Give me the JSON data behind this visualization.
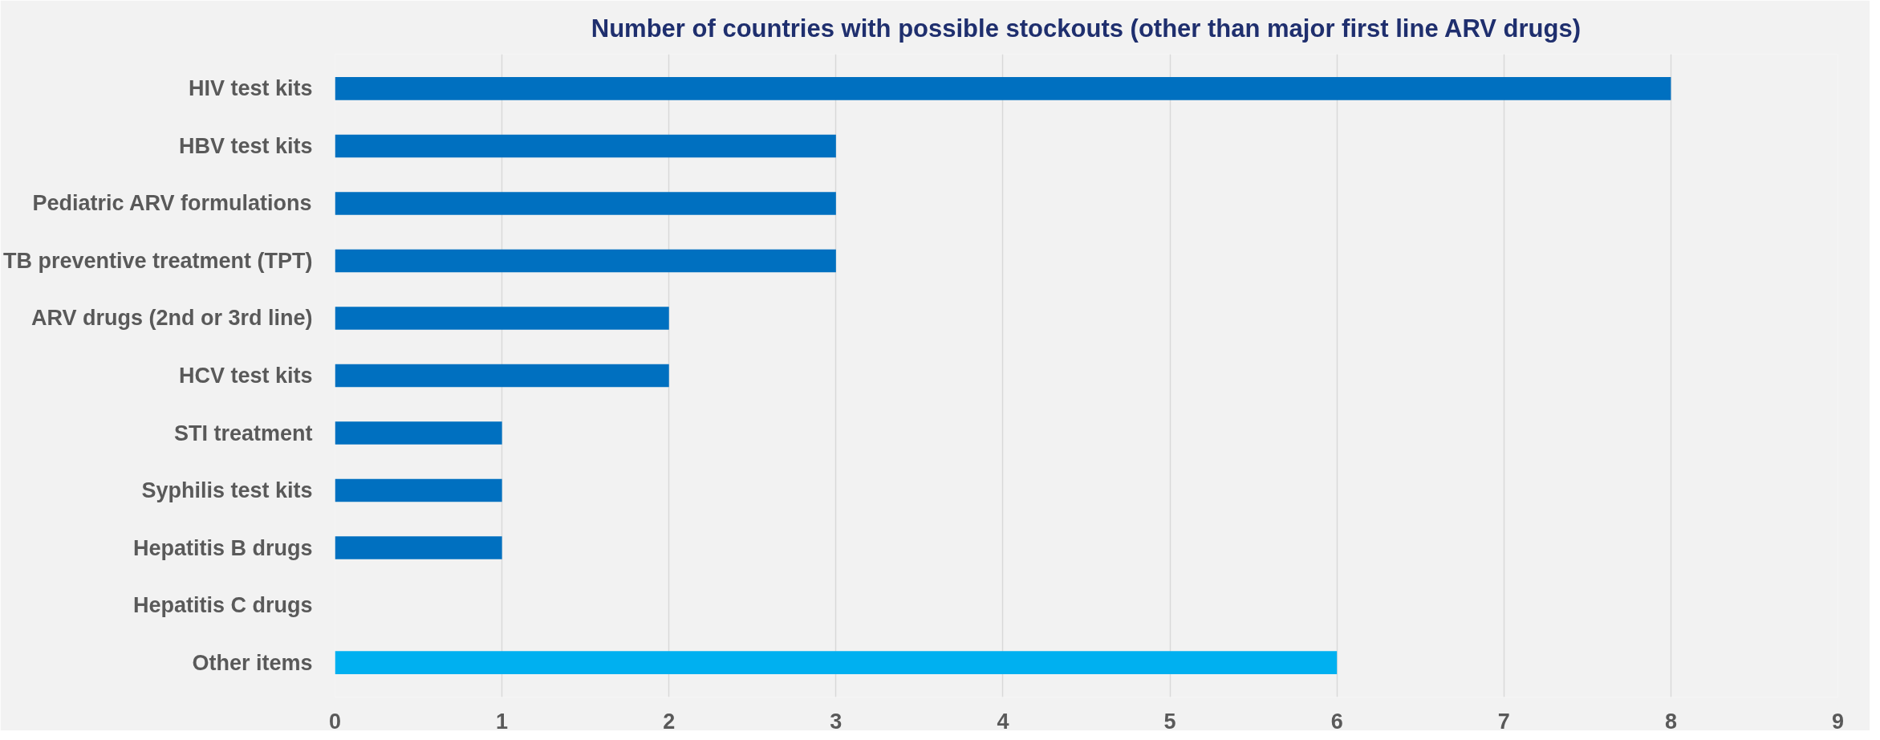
{
  "chart_data": {
    "type": "bar",
    "orientation": "horizontal",
    "title": "Number of countries with possible stockouts (other than major first line ARV drugs)",
    "categories": [
      "HIV test kits",
      "HBV test kits",
      "Pediatric ARV formulations",
      "TB preventive treatment (TPT)",
      "ARV drugs (2nd or 3rd line)",
      "HCV test kits",
      "STI treatment",
      "Syphilis test kits",
      "Hepatitis B drugs",
      "Hepatitis C drugs",
      "Other items"
    ],
    "values": [
      8,
      3,
      3,
      3,
      2,
      2,
      1,
      1,
      1,
      0,
      6
    ],
    "colors": [
      "#0070c0",
      "#0070c0",
      "#0070c0",
      "#0070c0",
      "#0070c0",
      "#0070c0",
      "#0070c0",
      "#0070c0",
      "#0070c0",
      "#0070c0",
      "#00b0f0"
    ],
    "xlim": [
      0,
      9
    ],
    "xticks": [
      0,
      1,
      2,
      3,
      4,
      5,
      6,
      7,
      8,
      9
    ],
    "grid": "x"
  }
}
